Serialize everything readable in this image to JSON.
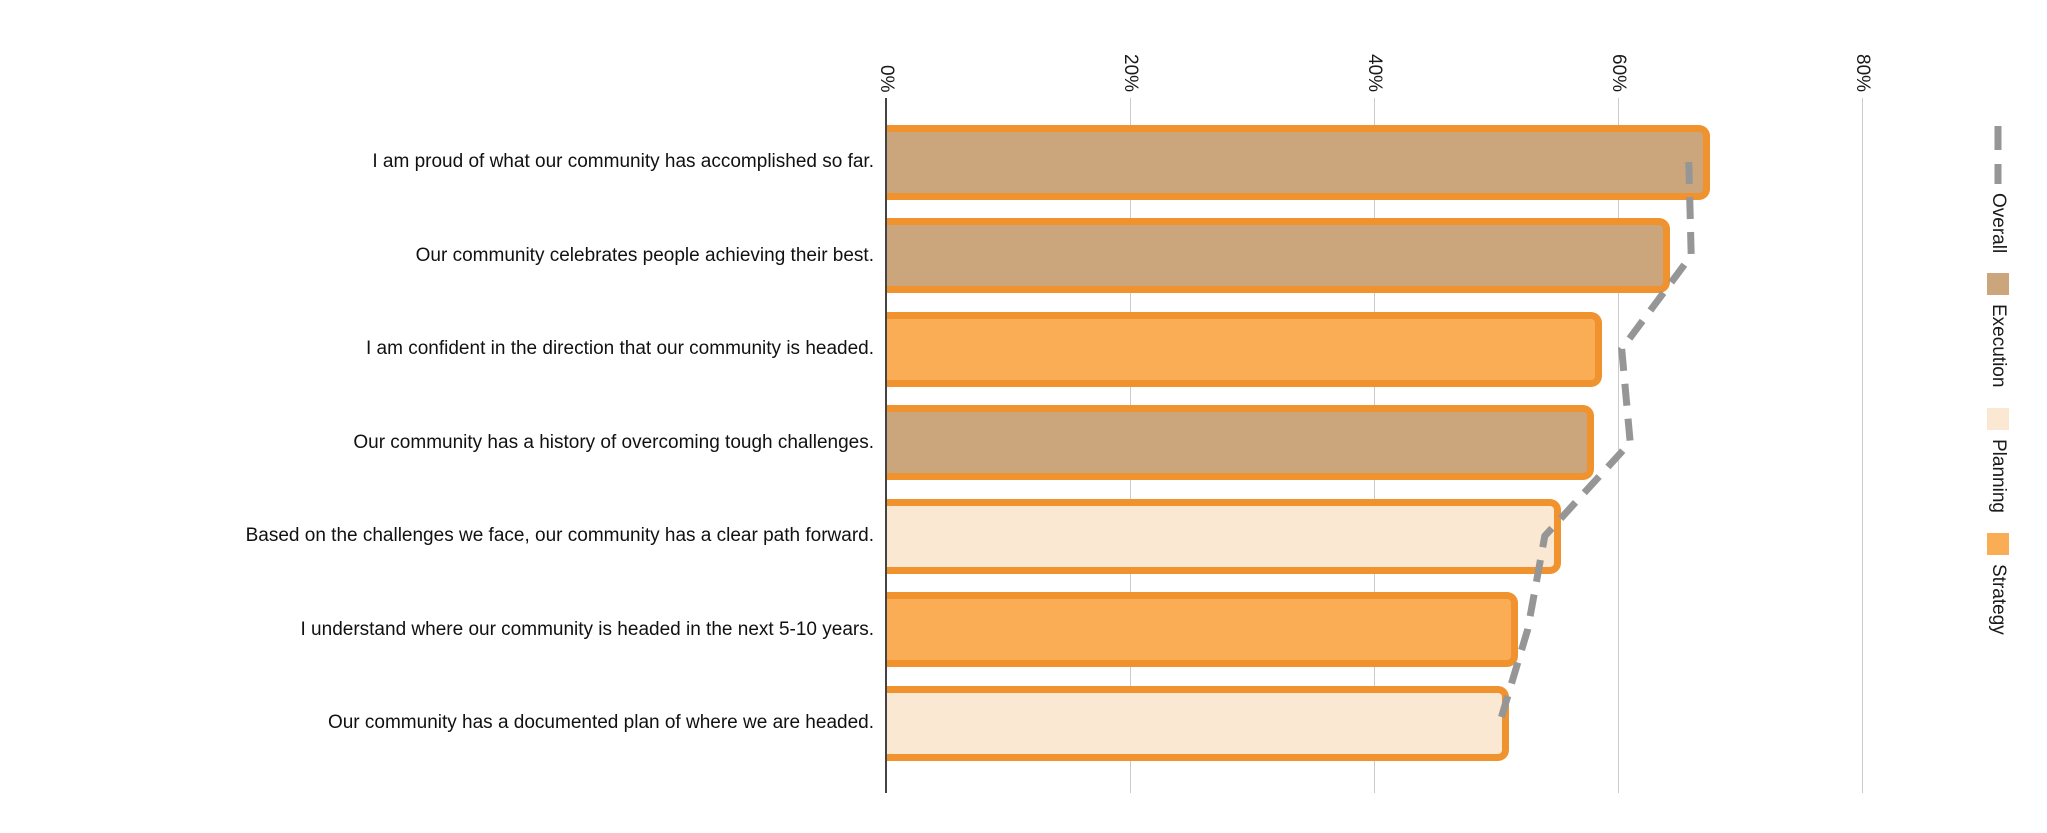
{
  "chart_data": {
    "type": "bar",
    "orientation": "horizontal",
    "title": "",
    "x_axis": {
      "ticks": [
        "0%",
        "20%",
        "40%",
        "60%",
        "80%"
      ],
      "tick_values": [
        0,
        20,
        40,
        60,
        80
      ],
      "range": [
        0,
        85
      ],
      "unit": "percent",
      "grid": true
    },
    "bars": [
      {
        "label": "I am proud of what our community has accomplished so far.",
        "group": "Execution",
        "value": 67.5
      },
      {
        "label": "Our community celebrates people achieving their best.",
        "group": "Execution",
        "value": 64.3
      },
      {
        "label": "I am confident in the direction that our community is headed.",
        "group": "Strategy",
        "value": 58.7
      },
      {
        "label": "Our community has a history of overcoming tough challenges.",
        "group": "Execution",
        "value": 58.0
      },
      {
        "label": "Based on the challenges we face, our community has a clear path forward.",
        "group": "Planning",
        "value": 55.3
      },
      {
        "label": "I understand where our community is headed in the next 5-10 years.",
        "group": "Strategy",
        "value": 51.8
      },
      {
        "label": "Our community has a documented plan of where we are headed.",
        "group": "Planning",
        "value": 51.1
      }
    ],
    "series": [
      {
        "name": "Overall",
        "type": "dashed-line",
        "values": [
          65.8,
          66.0,
          60.3,
          61.0,
          54.0,
          52.6,
          50.3
        ]
      }
    ],
    "legend_position": "right"
  },
  "legend": {
    "items": [
      {
        "label": "Overall",
        "marker": "dashed-line",
        "color": "#969696"
      },
      {
        "label": "Execution",
        "marker": "square",
        "color": "#CBA67C"
      },
      {
        "label": "Planning",
        "marker": "square",
        "color": "#FBE8D2"
      },
      {
        "label": "Strategy",
        "marker": "square",
        "color": "#FAAD55"
      }
    ]
  },
  "colors": {
    "group_fills": {
      "Execution": "#CBA67C",
      "Planning": "#FBE8D2",
      "Strategy": "#FAAD55"
    },
    "bar_border": "#F0922D",
    "overall_line": "#969696",
    "gridline": "#CBCBCB",
    "axis_line": "#444444",
    "text": "#1a1a1a"
  }
}
